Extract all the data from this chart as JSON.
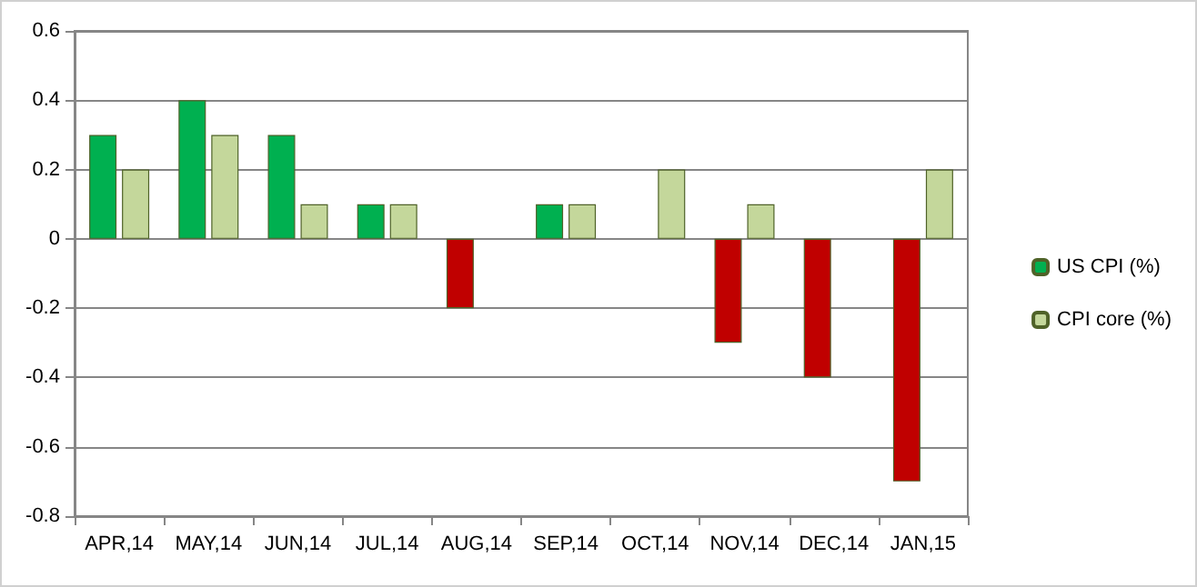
{
  "chart_data": {
    "type": "bar",
    "categories": [
      "APR,14",
      "MAY,14",
      "JUN,14",
      "JUL,14",
      "AUG,14",
      "SEP,14",
      "OCT,14",
      "NOV,14",
      "DEC,14",
      "JAN,15"
    ],
    "series": [
      {
        "name": "US CPI (%)",
        "color": "#00b050",
        "colors": [
          "#00b050",
          "#00b050",
          "#00b050",
          "#00b050",
          "#c00000",
          "#00b050",
          null,
          "#c00000",
          "#c00000",
          "#c00000"
        ],
        "values": [
          0.3,
          0.4,
          0.3,
          0.1,
          -0.2,
          0.1,
          null,
          -0.3,
          -0.4,
          -0.7
        ]
      },
      {
        "name": "CPI core (%)",
        "color": "#c4d79b",
        "values": [
          0.2,
          0.3,
          0.1,
          0.1,
          null,
          0.1,
          0.2,
          0.1,
          null,
          0.2
        ]
      }
    ],
    "ylim": [
      -0.8,
      0.6
    ],
    "yticks": [
      -0.8,
      -0.6,
      -0.4,
      -0.2,
      0,
      0.2,
      0.4,
      0.6
    ],
    "grid": "y",
    "legend": "right"
  }
}
